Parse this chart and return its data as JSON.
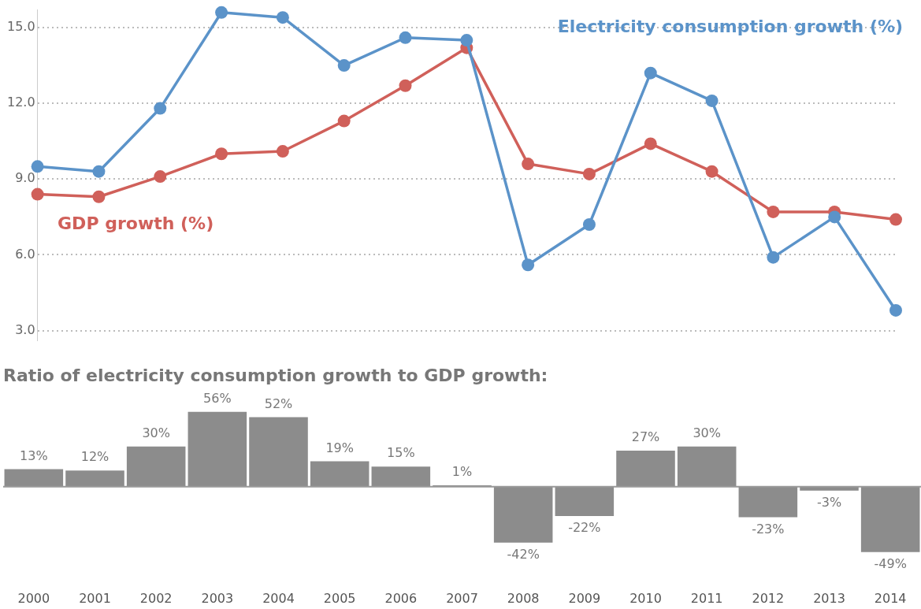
{
  "chart_data": [
    {
      "type": "line",
      "categories": [
        "2000",
        "2001",
        "2002",
        "2003",
        "2004",
        "2005",
        "2006",
        "2007",
        "2008",
        "2009",
        "2010",
        "2011",
        "2012",
        "2013",
        "2014"
      ],
      "series": [
        {
          "name": "Electricity consumption growth (%)",
          "color": "#5b93c9",
          "values": [
            9.5,
            9.3,
            11.8,
            15.6,
            15.4,
            13.5,
            14.6,
            14.5,
            5.6,
            7.2,
            13.2,
            12.1,
            5.9,
            7.5,
            3.8
          ]
        },
        {
          "name": "GDP growth (%)",
          "color": "#d0605a",
          "values": [
            8.4,
            8.3,
            9.1,
            10.0,
            10.1,
            11.3,
            12.7,
            14.2,
            9.6,
            9.2,
            10.4,
            9.3,
            7.7,
            7.7,
            7.4
          ]
        }
      ],
      "ylim": [
        2.6,
        15.7
      ],
      "yticks": [
        {
          "value": 3,
          "label": "3.0"
        },
        {
          "value": 6,
          "label": "6.0"
        },
        {
          "value": 9,
          "label": "9.0"
        },
        {
          "value": 12,
          "label": "12.0"
        },
        {
          "value": 15,
          "label": "15.0"
        }
      ],
      "grid": "y",
      "legend": false,
      "tick_labels": "y",
      "marker": "circle"
    },
    {
      "type": "bar",
      "title": "Ratio of electricity consumption growth to GDP growth:",
      "categories": [
        "2000",
        "2001",
        "2002",
        "2003",
        "2004",
        "2005",
        "2006",
        "2007",
        "2008",
        "2009",
        "2010",
        "2011",
        "2012",
        "2013",
        "2014"
      ],
      "values": [
        13,
        12,
        30,
        56,
        52,
        19,
        15,
        1,
        -42,
        -22,
        27,
        30,
        -23,
        -3,
        -49
      ],
      "value_labels": [
        "13%",
        "12%",
        "30%",
        "56%",
        "52%",
        "19%",
        "15%",
        "1%",
        "-42%",
        "-22%",
        "27%",
        "30%",
        "-23%",
        "-3%",
        "-49%"
      ],
      "color": "#8c8c8c",
      "legend": false,
      "tick_labels": "x"
    }
  ]
}
